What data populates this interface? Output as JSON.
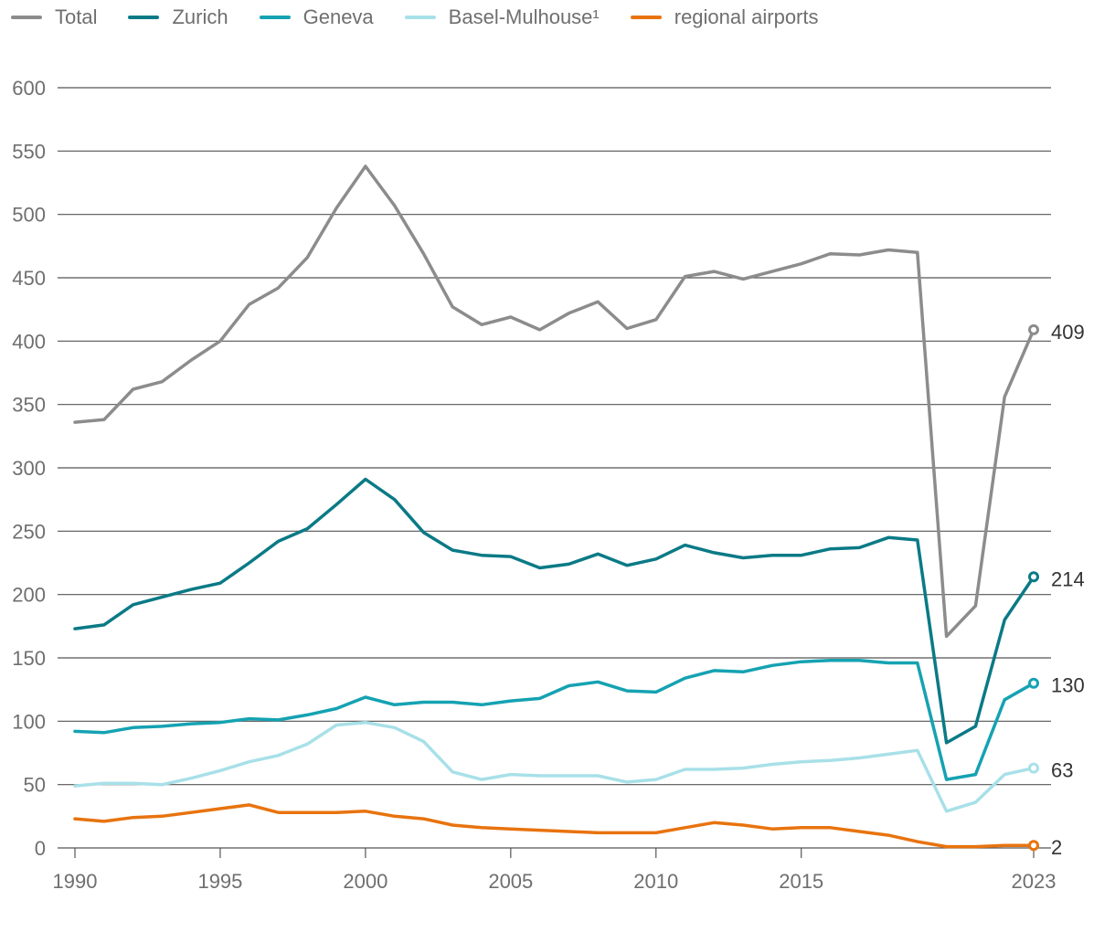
{
  "chart_data": {
    "type": "line",
    "title": "",
    "xlabel": "",
    "ylabel": "",
    "ylim": [
      0,
      600
    ],
    "yticks": [
      0,
      50,
      100,
      150,
      200,
      250,
      300,
      350,
      400,
      450,
      500,
      550,
      600
    ],
    "xticks": [
      1990,
      1995,
      2000,
      2005,
      2010,
      2015,
      2023
    ],
    "grid": "horizontal",
    "legend_position": "top-left",
    "x": [
      1990,
      1991,
      1992,
      1993,
      1994,
      1995,
      1996,
      1997,
      1998,
      1999,
      2000,
      2001,
      2002,
      2003,
      2004,
      2005,
      2006,
      2007,
      2008,
      2009,
      2010,
      2011,
      2012,
      2013,
      2014,
      2015,
      2016,
      2017,
      2018,
      2019,
      2020,
      2021,
      2022,
      2023
    ],
    "series": [
      {
        "name": "Total",
        "color": "#8c8c8c",
        "end_label": "409",
        "values": [
          336,
          338,
          362,
          368,
          385,
          400,
          429,
          442,
          466,
          505,
          538,
          507,
          469,
          427,
          413,
          419,
          409,
          422,
          431,
          410,
          417,
          451,
          455,
          449,
          455,
          461,
          469,
          468,
          472,
          470,
          167,
          191,
          356,
          409
        ]
      },
      {
        "name": "Zurich",
        "color": "#0a7a86",
        "end_label": "214",
        "values": [
          173,
          176,
          192,
          198,
          204,
          209,
          225,
          242,
          252,
          271,
          291,
          275,
          249,
          235,
          231,
          230,
          221,
          224,
          232,
          223,
          228,
          239,
          233,
          229,
          231,
          231,
          236,
          237,
          245,
          243,
          83,
          96,
          180,
          214
        ]
      },
      {
        "name": "Geneva",
        "color": "#15a2b2",
        "end_label": "130",
        "values": [
          92,
          91,
          95,
          96,
          98,
          99,
          102,
          101,
          105,
          110,
          119,
          113,
          115,
          115,
          113,
          116,
          118,
          128,
          131,
          124,
          123,
          134,
          140,
          139,
          144,
          147,
          148,
          148,
          146,
          146,
          54,
          58,
          117,
          130
        ]
      },
      {
        "name": "Basel-Mulhouse¹",
        "color": "#a8e0e8",
        "end_label": "63",
        "values": [
          49,
          51,
          51,
          50,
          55,
          61,
          68,
          73,
          82,
          97,
          99,
          95,
          84,
          60,
          54,
          58,
          57,
          57,
          57,
          52,
          54,
          62,
          62,
          63,
          66,
          68,
          69,
          71,
          74,
          77,
          29,
          36,
          58,
          63
        ]
      },
      {
        "name": "regional airports",
        "color": "#e8730e",
        "end_label": "2",
        "values": [
          23,
          21,
          24,
          25,
          28,
          31,
          34,
          28,
          28,
          28,
          29,
          25,
          23,
          18,
          16,
          15,
          14,
          13,
          12,
          12,
          12,
          16,
          20,
          18,
          15,
          16,
          16,
          13,
          10,
          5,
          1,
          1,
          2,
          2
        ]
      }
    ]
  }
}
